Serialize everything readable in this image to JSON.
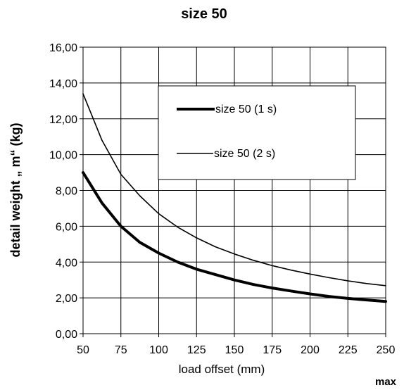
{
  "chart_data": {
    "type": "line",
    "title": "size 50",
    "xlabel": "load offset (mm)",
    "ylabel": "detail weight „ m“ (kg)",
    "note": "max",
    "xlim": [
      50,
      250
    ],
    "ylim": [
      0,
      16
    ],
    "xticks": [
      50,
      75,
      100,
      125,
      150,
      175,
      200,
      225,
      250
    ],
    "yticks": [
      "0,00",
      "2,00",
      "4,00",
      "6,00",
      "8,00",
      "10,00",
      "12,00",
      "14,00",
      "16,00"
    ],
    "grid": true,
    "legend_position": "top-right",
    "x": [
      50,
      62.5,
      75,
      87.5,
      100,
      112.5,
      125,
      137.5,
      150,
      162.5,
      175,
      187.5,
      200,
      212.5,
      225,
      237.5,
      250
    ],
    "series": [
      {
        "name": "size 50 (1 s)",
        "stroke": "thick",
        "values": [
          9.0,
          7.3,
          6.0,
          5.1,
          4.5,
          4.0,
          3.6,
          3.3,
          3.0,
          2.75,
          2.55,
          2.38,
          2.22,
          2.08,
          1.97,
          1.88,
          1.8
        ]
      },
      {
        "name": "size 50 (2 s)",
        "stroke": "thin",
        "values": [
          13.4,
          10.8,
          8.9,
          7.7,
          6.7,
          5.95,
          5.35,
          4.85,
          4.45,
          4.1,
          3.8,
          3.55,
          3.33,
          3.13,
          2.95,
          2.8,
          2.68
        ]
      }
    ]
  }
}
